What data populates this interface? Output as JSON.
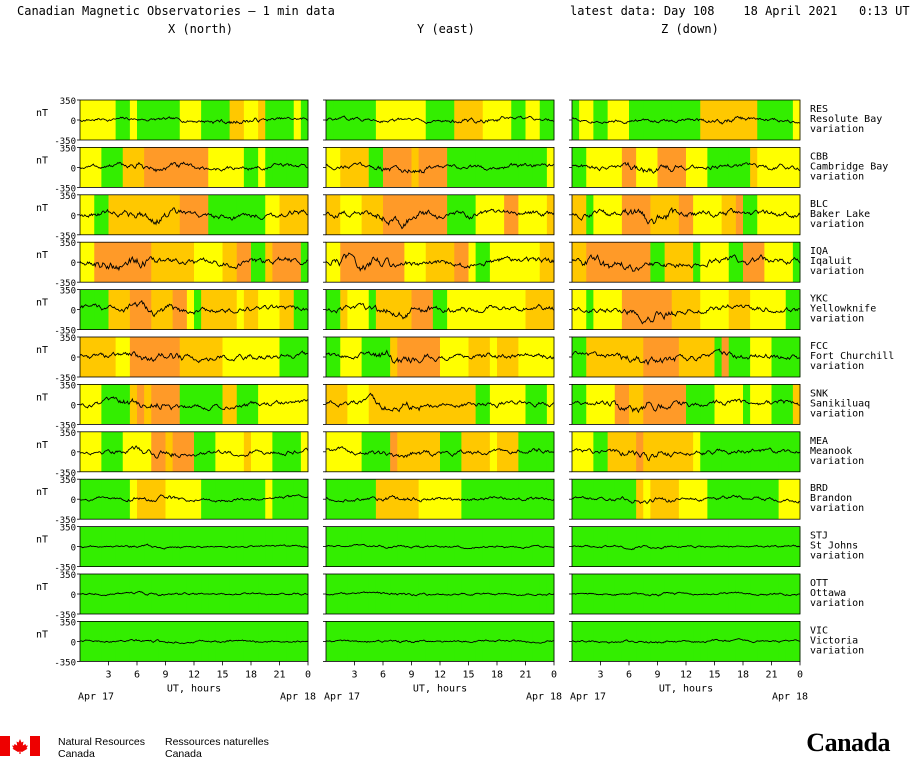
{
  "header": {
    "title": "Canadian Magnetic Observatories – 1 min data",
    "latest": "latest data: Day 108    18 April 2021   0:13 UT"
  },
  "footer": {
    "agency_en_1": "Natural Resources",
    "agency_en_2": "Canada",
    "agency_fr_1": "Ressources naturelles",
    "agency_fr_2": "Canada",
    "wordmark": "Canada"
  },
  "colors": {
    "quiet": "#33ee00",
    "unsettled": "#ffff00",
    "active": "#ffc800",
    "storm": "#ff9a28",
    "trace": "#000000"
  },
  "chart_data": {
    "type": "line",
    "title": "Canadian Magnetic Observatories – 1 min data",
    "components": [
      "X (north)",
      "Y (east)",
      "Z (down)"
    ],
    "units": "nT",
    "ylim": [
      -350,
      350
    ],
    "yticks": [
      350,
      0,
      -350
    ],
    "xlim": [
      0,
      24
    ],
    "xticks": [
      "3",
      "6",
      "9",
      "12",
      "15",
      "18",
      "21",
      "0"
    ],
    "xlabel": "UT, hours",
    "start_date": "Apr 17",
    "end_date": "Apr 18",
    "panel_suffix": "variation",
    "stations": [
      {
        "code": "RES",
        "name": "Resolute Bay",
        "activity": 0.35,
        "storm_center": 16
      },
      {
        "code": "CBB",
        "name": "Cambridge Bay",
        "activity": 0.55,
        "storm_center": 8
      },
      {
        "code": "BLC",
        "name": "Baker Lake",
        "activity": 0.75,
        "storm_center": 8
      },
      {
        "code": "IQA",
        "name": "Iqaluit",
        "activity": 0.85,
        "storm_center": 4
      },
      {
        "code": "YKC",
        "name": "Yellowknife",
        "activity": 0.7,
        "storm_center": 8
      },
      {
        "code": "FCC",
        "name": "Fort Churchill",
        "activity": 0.7,
        "storm_center": 8
      },
      {
        "code": "SNK",
        "name": "Sanikiluaq",
        "activity": 0.65,
        "storm_center": 7
      },
      {
        "code": "MEA",
        "name": "Meanook",
        "activity": 0.55,
        "storm_center": 8
      },
      {
        "code": "BRD",
        "name": "Brandon",
        "activity": 0.35,
        "storm_center": 8
      },
      {
        "code": "STJ",
        "name": "St Johns",
        "activity": 0.12,
        "storm_center": 8
      },
      {
        "code": "OTT",
        "name": "Ottawa",
        "activity": 0.12,
        "storm_center": 8
      },
      {
        "code": "VIC",
        "name": "Victoria",
        "activity": 0.12,
        "storm_center": 8
      }
    ]
  }
}
